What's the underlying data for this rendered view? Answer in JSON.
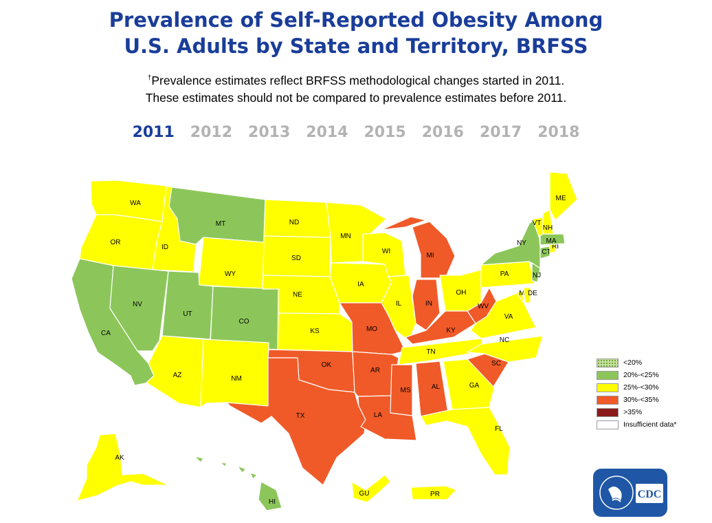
{
  "title": {
    "line1": "Prevalence of Self-Reported Obesity Among",
    "line2": "U.S. Adults by State and Territory, BRFSS"
  },
  "subtitle": {
    "marker": "†",
    "line1": "Prevalence estimates reflect BRFSS methodological changes started in 2011.",
    "line2": "These estimates should not be compared to prevalence estimates before 2011."
  },
  "years": [
    "2011",
    "2012",
    "2013",
    "2014",
    "2015",
    "2016",
    "2017",
    "2018"
  ],
  "selected_year": "2011",
  "colors": {
    "title": "#1a3d99",
    "year_inactive": "#b3b3b3",
    "lt20": "#c3e29a",
    "20to25": "#8cc65a",
    "25to30": "#ffff00",
    "30to35": "#f05a28",
    "gte35": "#8b1a1a",
    "insufficient": "#ffffff"
  },
  "legend": [
    {
      "label": "<20%",
      "color": "#c3e29a",
      "pattern": "dotted"
    },
    {
      "label": "20%-<25%",
      "color": "#8cc65a"
    },
    {
      "label": "25%-<30%",
      "color": "#ffff00"
    },
    {
      "label": "30%-<35%",
      "color": "#f05a28"
    },
    {
      "label": ">35%",
      "color": "#8b1a1a"
    },
    {
      "label": "Insufficient data*",
      "color": "#ffffff"
    }
  ],
  "states": {
    "WA": "25to30",
    "OR": "25to30",
    "CA": "20to25",
    "ID": "25to30",
    "NV": "20to25",
    "MT": "20to25",
    "WY": "25to30",
    "UT": "20to25",
    "AZ": "25to30",
    "CO": "20to25",
    "NM": "25to30",
    "ND": "25to30",
    "SD": "25to30",
    "NE": "25to30",
    "KS": "25to30",
    "OK": "30to35",
    "TX": "30to35",
    "MN": "25to30",
    "IA": "25to30",
    "MO": "30to35",
    "AR": "30to35",
    "LA": "30to35",
    "WI": "25to30",
    "IL": "25to30",
    "MI": "30to35",
    "IN": "30to35",
    "KY": "30to35",
    "TN": "25to30",
    "MS": "30to35",
    "AL": "30to35",
    "GA": "25to30",
    "FL": "25to30",
    "SC": "30to35",
    "NC": "25to30",
    "VA": "25to30",
    "WV": "30to35",
    "OH": "25to30",
    "PA": "25to30",
    "NY": "20to25",
    "NJ": "20to25",
    "DE": "25to30",
    "MD": "25to30",
    "CT": "20to25",
    "RI": "25to30",
    "MA": "20to25",
    "VT": "25to30",
    "NH": "25to30",
    "ME": "25to30",
    "AK": "25to30",
    "HI": "20to25",
    "GU": "25to30",
    "PR": "25to30"
  },
  "logo_text": "CDC"
}
